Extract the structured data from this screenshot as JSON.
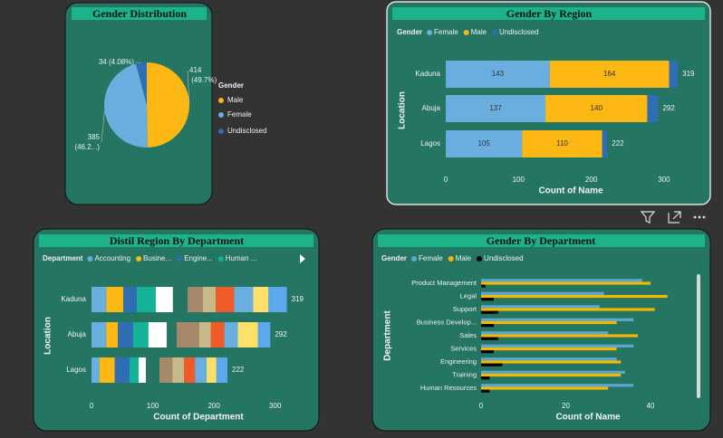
{
  "chart_data": [
    {
      "type": "pie",
      "title": "Gender Distribution",
      "legend_title": "Gender",
      "categories": [
        "Male",
        "Female",
        "Undisclosed"
      ],
      "values": [
        414,
        385,
        34
      ],
      "value_labels": [
        "414 (49.7%)",
        "385 (46.2...)",
        "34 (4.08%)"
      ],
      "colors": [
        "#fdb813",
        "#6aaee0",
        "#2f6db5"
      ]
    },
    {
      "type": "stacked_bar_h",
      "title": "Gender By Region",
      "legend_title": "Gender",
      "categories": [
        "Kaduna",
        "Abuja",
        "Lagos"
      ],
      "series": [
        {
          "name": "Female",
          "color": "#6aaee0",
          "values": [
            143,
            137,
            105
          ],
          "data_labels": true
        },
        {
          "name": "Male",
          "color": "#fdb813",
          "values": [
            164,
            140,
            110
          ],
          "data_labels": true
        },
        {
          "name": "Undisclosed",
          "color": "#2f6db5",
          "values": [
            12,
            15,
            7
          ]
        }
      ],
      "totals": [
        319,
        292,
        222
      ],
      "xlim": [
        0,
        330
      ],
      "xticks": [
        0,
        100,
        200,
        300
      ],
      "xlabel": "Count of Name",
      "ylabel": "Location"
    },
    {
      "type": "stacked_bar_h",
      "title": "Distil Region By Department",
      "legend_title": "Department",
      "categories": [
        "Kaduna",
        "Abuja",
        "Lagos"
      ],
      "series": [
        {
          "name": "Accounting",
          "color": "#6aaee0",
          "values": [
            24,
            24,
            13
          ]
        },
        {
          "name": "Busine...",
          "color": "#fdb813",
          "values": [
            28,
            19,
            25
          ]
        },
        {
          "name": "Engine...",
          "color": "#2f6db5",
          "values": [
            22,
            25,
            24
          ]
        },
        {
          "name": "Human ...",
          "color": "#14b397",
          "values": [
            31,
            25,
            15
          ]
        },
        {
          "color": "#ffffff",
          "values": [
            28,
            30,
            12
          ]
        },
        {
          "color": "#247562",
          "values": [
            24,
            16,
            22
          ]
        },
        {
          "color": "#a6896a",
          "values": [
            25,
            37,
            21
          ]
        },
        {
          "color": "#c9b98a",
          "values": [
            21,
            19,
            19
          ]
        },
        {
          "color": "#f05a28",
          "values": [
            30,
            22,
            18
          ]
        },
        {
          "color": "#6aaee0",
          "values": [
            31,
            22,
            19
          ]
        },
        {
          "color": "#fde06a",
          "values": [
            25,
            33,
            16
          ]
        },
        {
          "color": "#5ba8ec",
          "values": [
            30,
            20,
            18
          ]
        }
      ],
      "totals": [
        319,
        292,
        222
      ],
      "xlim": [
        0,
        330
      ],
      "xticks": [
        0,
        100,
        200,
        300
      ],
      "xlabel": "Count of Department",
      "ylabel": "Location"
    },
    {
      "type": "grouped_bar_h",
      "title": "Gender By Department",
      "legend_title": "Gender",
      "categories": [
        "Product Management",
        "Legal",
        "Support",
        "Business Develop...",
        "Sales",
        "Services",
        "Engineering",
        "Training",
        "Human Resources"
      ],
      "series": [
        {
          "name": "Female",
          "color": "#5ba8d6",
          "values": [
            38,
            29,
            28,
            36,
            30,
            36,
            32,
            34,
            36
          ]
        },
        {
          "name": "Male",
          "color": "#f5b800",
          "values": [
            40,
            44,
            41,
            32,
            37,
            32,
            33,
            33,
            30
          ]
        },
        {
          "name": "Undisclosed",
          "color": "#000000",
          "values": [
            1,
            3,
            4,
            3,
            4,
            3,
            5,
            2,
            2
          ]
        }
      ],
      "xlim": [
        0,
        49
      ],
      "xticks": [
        0,
        20,
        40
      ],
      "xlabel": "Count of Name",
      "ylabel": "Department"
    }
  ]
}
